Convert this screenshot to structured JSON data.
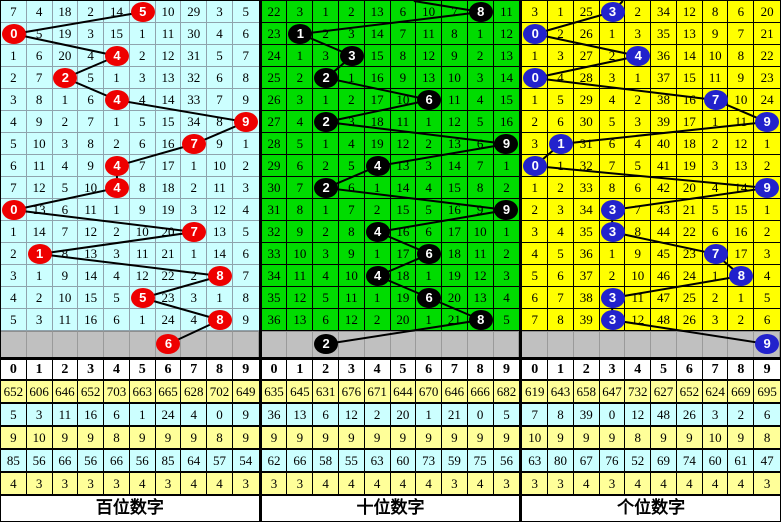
{
  "chart_data": [
    {
      "type": "line",
      "title": "百位数字",
      "ylabel": "digit 0-9",
      "ylim": [
        0,
        9
      ],
      "values": [
        5,
        0,
        4,
        2,
        4,
        9,
        7,
        4,
        4,
        0,
        7,
        1,
        8,
        5,
        8,
        6
      ],
      "note": "drawn hundreds digit per draw, last value in pending gray row"
    },
    {
      "type": "line",
      "title": "十位数字",
      "ylabel": "digit 0-9",
      "ylim": [
        0,
        9
      ],
      "values": [
        8,
        1,
        3,
        2,
        6,
        2,
        9,
        4,
        2,
        9,
        4,
        6,
        4,
        6,
        8,
        2
      ],
      "note": "drawn tens digit per draw, last value in pending gray row"
    },
    {
      "type": "line",
      "title": "个位数字",
      "ylabel": "digit 0-9",
      "ylim": [
        0,
        9
      ],
      "values": [
        3,
        0,
        4,
        0,
        7,
        9,
        1,
        0,
        9,
        3,
        3,
        7,
        8,
        3,
        3,
        9
      ],
      "note": "drawn units digit per draw, last value in pending gray row"
    }
  ],
  "board": {
    "columns": [
      "0",
      "1",
      "2",
      "3",
      "4",
      "5",
      "6",
      "7",
      "8",
      "9"
    ],
    "line_color": "#000000",
    "gray_row_color": "#C0C0C0",
    "stat_row_colors": [
      "#FFFF99",
      "#CCFFFF"
    ],
    "panels": [
      {
        "id": "hundreds",
        "title": "百位数字",
        "bg": "#CCFFFF",
        "grid_line": "#8FA3AD",
        "ball_color": "#EE0000",
        "entry_x": null,
        "rows": [
          {
            "cells": [
              "7",
              "4",
              "18",
              "2",
              "14",
              "",
              "10",
              "29",
              "3",
              "5"
            ],
            "ball": 5
          },
          {
            "cells": [
              "",
              "5",
              "19",
              "3",
              "15",
              "1",
              "11",
              "30",
              "4",
              "6"
            ],
            "ball": 0
          },
          {
            "cells": [
              "1",
              "6",
              "20",
              "4",
              "",
              "2",
              "12",
              "31",
              "5",
              "7"
            ],
            "ball": 4
          },
          {
            "cells": [
              "2",
              "7",
              "",
              "5",
              "1",
              "3",
              "13",
              "32",
              "6",
              "8"
            ],
            "ball": 2
          },
          {
            "cells": [
              "3",
              "8",
              "1",
              "6",
              "",
              "4",
              "14",
              "33",
              "7",
              "9"
            ],
            "ball": 4
          },
          {
            "cells": [
              "4",
              "9",
              "2",
              "7",
              "1",
              "5",
              "15",
              "34",
              "8",
              ""
            ],
            "ball": 9
          },
          {
            "cells": [
              "5",
              "10",
              "3",
              "8",
              "2",
              "6",
              "16",
              "",
              "9",
              "1"
            ],
            "ball": 7
          },
          {
            "cells": [
              "6",
              "11",
              "4",
              "9",
              "",
              "7",
              "17",
              "1",
              "10",
              "2"
            ],
            "ball": 4
          },
          {
            "cells": [
              "7",
              "12",
              "5",
              "10",
              "",
              "8",
              "18",
              "2",
              "11",
              "3"
            ],
            "ball": 4
          },
          {
            "cells": [
              "",
              "13",
              "6",
              "11",
              "1",
              "9",
              "19",
              "3",
              "12",
              "4"
            ],
            "ball": 0
          },
          {
            "cells": [
              "1",
              "14",
              "7",
              "12",
              "2",
              "10",
              "20",
              "",
              "13",
              "5"
            ],
            "ball": 7
          },
          {
            "cells": [
              "2",
              "",
              "8",
              "13",
              "3",
              "11",
              "21",
              "1",
              "14",
              "6"
            ],
            "ball": 1
          },
          {
            "cells": [
              "3",
              "1",
              "9",
              "14",
              "4",
              "12",
              "22",
              "2",
              "",
              "7"
            ],
            "ball": 8
          },
          {
            "cells": [
              "4",
              "2",
              "10",
              "15",
              "5",
              "",
              "23",
              "3",
              "1",
              "8"
            ],
            "ball": 5
          },
          {
            "cells": [
              "5",
              "3",
              "11",
              "16",
              "6",
              "1",
              "24",
              "4",
              "",
              "9"
            ],
            "ball": 8
          }
        ],
        "pending_ball": 6,
        "stats": [
          {
            "values": [
              "652",
              "606",
              "646",
              "652",
              "703",
              "663",
              "665",
              "628",
              "702",
              "649"
            ]
          },
          {
            "values": [
              "5",
              "3",
              "11",
              "16",
              "6",
              "1",
              "24",
              "4",
              "0",
              "9"
            ]
          },
          {
            "values": [
              "9",
              "10",
              "9",
              "9",
              "8",
              "9",
              "9",
              "9",
              "8",
              "9"
            ]
          },
          {
            "values": [
              "85",
              "56",
              "66",
              "56",
              "66",
              "56",
              "85",
              "64",
              "57",
              "54"
            ]
          },
          {
            "values": [
              "4",
              "3",
              "3",
              "3",
              "3",
              "4",
              "3",
              "4",
              "4",
              "3"
            ]
          }
        ]
      },
      {
        "id": "tens",
        "title": "十位数字",
        "bg": "#00DC00",
        "grid_line": "#000000",
        "ball_color": "#000000",
        "entry_x": 152,
        "rows": [
          {
            "cells": [
              "22",
              "3",
              "1",
              "2",
              "13",
              "6",
              "10",
              "7",
              "",
              "11"
            ],
            "ball": 8
          },
          {
            "cells": [
              "23",
              "",
              "2",
              "3",
              "14",
              "7",
              "11",
              "8",
              "1",
              "12"
            ],
            "ball": 1
          },
          {
            "cells": [
              "24",
              "1",
              "3",
              "",
              "15",
              "8",
              "12",
              "9",
              "2",
              "13"
            ],
            "ball": 3
          },
          {
            "cells": [
              "25",
              "2",
              "",
              "1",
              "16",
              "9",
              "13",
              "10",
              "3",
              "14"
            ],
            "ball": 2
          },
          {
            "cells": [
              "26",
              "3",
              "1",
              "2",
              "17",
              "10",
              "",
              "11",
              "4",
              "15"
            ],
            "ball": 6
          },
          {
            "cells": [
              "27",
              "4",
              "",
              "3",
              "18",
              "11",
              "1",
              "12",
              "5",
              "16"
            ],
            "ball": 2
          },
          {
            "cells": [
              "28",
              "5",
              "1",
              "4",
              "19",
              "12",
              "2",
              "13",
              "6",
              ""
            ],
            "ball": 9
          },
          {
            "cells": [
              "29",
              "6",
              "2",
              "5",
              "",
              "13",
              "3",
              "14",
              "7",
              "1"
            ],
            "ball": 4
          },
          {
            "cells": [
              "30",
              "7",
              "",
              "6",
              "1",
              "14",
              "4",
              "15",
              "8",
              "2"
            ],
            "ball": 2
          },
          {
            "cells": [
              "31",
              "8",
              "1",
              "7",
              "2",
              "15",
              "5",
              "16",
              "9",
              ""
            ],
            "ball": 9
          },
          {
            "cells": [
              "32",
              "9",
              "2",
              "8",
              "",
              "16",
              "6",
              "17",
              "10",
              "1"
            ],
            "ball": 4
          },
          {
            "cells": [
              "33",
              "10",
              "3",
              "9",
              "1",
              "17",
              "",
              "18",
              "11",
              "2"
            ],
            "ball": 6
          },
          {
            "cells": [
              "34",
              "11",
              "4",
              "10",
              "",
              "18",
              "1",
              "19",
              "12",
              "3"
            ],
            "ball": 4
          },
          {
            "cells": [
              "35",
              "12",
              "5",
              "11",
              "1",
              "19",
              "",
              "20",
              "13",
              "4"
            ],
            "ball": 6
          },
          {
            "cells": [
              "36",
              "13",
              "6",
              "12",
              "2",
              "20",
              "1",
              "21",
              "",
              "5"
            ],
            "ball": 8
          }
        ],
        "pending_ball": 2,
        "stats": [
          {
            "values": [
              "635",
              "645",
              "631",
              "676",
              "671",
              "644",
              "670",
              "646",
              "666",
              "682"
            ]
          },
          {
            "values": [
              "36",
              "13",
              "6",
              "12",
              "2",
              "20",
              "1",
              "21",
              "0",
              "5"
            ]
          },
          {
            "values": [
              "9",
              "9",
              "9",
              "9",
              "9",
              "9",
              "9",
              "9",
              "9",
              "9"
            ]
          },
          {
            "values": [
              "62",
              "66",
              "58",
              "55",
              "63",
              "60",
              "73",
              "59",
              "75",
              "56"
            ]
          },
          {
            "values": [
              "3",
              "3",
              "4",
              "4",
              "4",
              "4",
              "4",
              "3",
              "4",
              "3"
            ]
          }
        ]
      },
      {
        "id": "units",
        "title": "个位数字",
        "bg": "#FFFF00",
        "grid_line": "#000000",
        "ball_color": "#2222CC",
        "entry_x": 101,
        "rows": [
          {
            "cells": [
              "3",
              "1",
              "25",
              "",
              "2",
              "34",
              "12",
              "8",
              "6",
              "20"
            ],
            "ball": 3
          },
          {
            "cells": [
              "",
              "2",
              "26",
              "1",
              "3",
              "35",
              "13",
              "9",
              "7",
              "21"
            ],
            "ball": 0
          },
          {
            "cells": [
              "1",
              "3",
              "27",
              "2",
              "",
              "36",
              "14",
              "10",
              "8",
              "22"
            ],
            "ball": 4
          },
          {
            "cells": [
              "",
              "4",
              "28",
              "3",
              "1",
              "37",
              "15",
              "11",
              "9",
              "23"
            ],
            "ball": 0
          },
          {
            "cells": [
              "1",
              "5",
              "29",
              "4",
              "2",
              "38",
              "16",
              "",
              "10",
              "24"
            ],
            "ball": 7
          },
          {
            "cells": [
              "2",
              "6",
              "30",
              "5",
              "3",
              "39",
              "17",
              "1",
              "11",
              ""
            ],
            "ball": 9
          },
          {
            "cells": [
              "3",
              "",
              "31",
              "6",
              "4",
              "40",
              "18",
              "2",
              "12",
              "1"
            ],
            "ball": 1
          },
          {
            "cells": [
              "",
              "1",
              "32",
              "7",
              "5",
              "41",
              "19",
              "3",
              "13",
              "2"
            ],
            "ball": 0
          },
          {
            "cells": [
              "1",
              "2",
              "33",
              "8",
              "6",
              "42",
              "20",
              "4",
              "14",
              ""
            ],
            "ball": 9
          },
          {
            "cells": [
              "2",
              "3",
              "34",
              "",
              "7",
              "43",
              "21",
              "5",
              "15",
              "1"
            ],
            "ball": 3
          },
          {
            "cells": [
              "3",
              "4",
              "35",
              "",
              "8",
              "44",
              "22",
              "6",
              "16",
              "2"
            ],
            "ball": 3
          },
          {
            "cells": [
              "4",
              "5",
              "36",
              "1",
              "9",
              "45",
              "23",
              "",
              "17",
              "3"
            ],
            "ball": 7
          },
          {
            "cells": [
              "5",
              "6",
              "37",
              "2",
              "10",
              "46",
              "24",
              "1",
              "",
              "4"
            ],
            "ball": 8
          },
          {
            "cells": [
              "6",
              "7",
              "38",
              "",
              "11",
              "47",
              "25",
              "2",
              "1",
              "5"
            ],
            "ball": 3
          },
          {
            "cells": [
              "7",
              "8",
              "39",
              "",
              "12",
              "48",
              "26",
              "3",
              "2",
              "6"
            ],
            "ball": 3
          }
        ],
        "pending_ball": 9,
        "stats": [
          {
            "values": [
              "619",
              "643",
              "658",
              "647",
              "732",
              "627",
              "652",
              "624",
              "669",
              "695"
            ]
          },
          {
            "values": [
              "7",
              "8",
              "39",
              "0",
              "12",
              "48",
              "26",
              "3",
              "2",
              "6"
            ]
          },
          {
            "values": [
              "10",
              "9",
              "9",
              "9",
              "8",
              "9",
              "9",
              "10",
              "9",
              "8"
            ]
          },
          {
            "values": [
              "63",
              "80",
              "67",
              "76",
              "52",
              "69",
              "74",
              "60",
              "61",
              "47"
            ]
          },
          {
            "values": [
              "3",
              "3",
              "4",
              "3",
              "4",
              "4",
              "4",
              "4",
              "4",
              "3"
            ]
          }
        ]
      }
    ]
  }
}
